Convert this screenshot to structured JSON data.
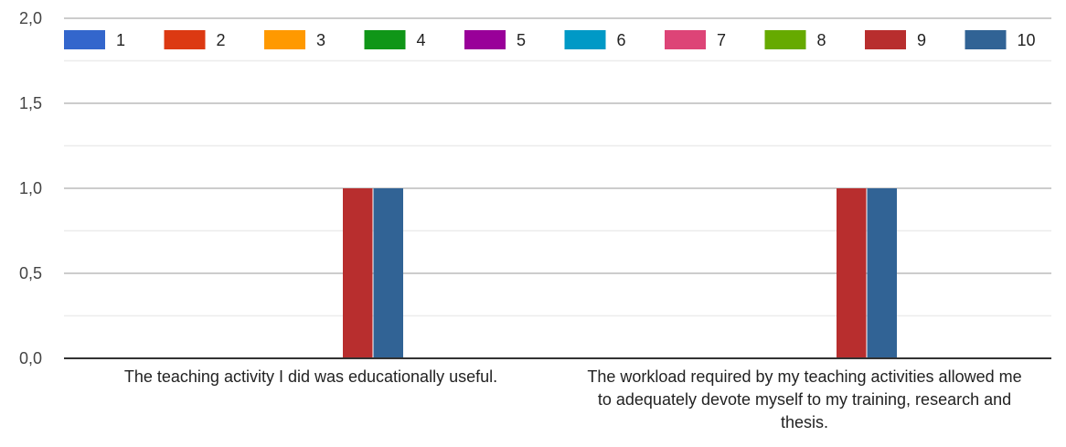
{
  "chart_data": {
    "type": "bar",
    "categories": [
      "The teaching activity I did was educationally useful.",
      "The workload required by my teaching activities allowed me to adequately devote myself to my training, research and thesis."
    ],
    "series": [
      {
        "name": "1",
        "color": "#3366cc",
        "values": [
          0,
          0
        ]
      },
      {
        "name": "2",
        "color": "#dc3912",
        "values": [
          0,
          0
        ]
      },
      {
        "name": "3",
        "color": "#ff9900",
        "values": [
          0,
          0
        ]
      },
      {
        "name": "4",
        "color": "#109618",
        "values": [
          0,
          0
        ]
      },
      {
        "name": "5",
        "color": "#990099",
        "values": [
          0,
          0
        ]
      },
      {
        "name": "6",
        "color": "#0099c6",
        "values": [
          0,
          0
        ]
      },
      {
        "name": "7",
        "color": "#dd4477",
        "values": [
          0,
          0
        ]
      },
      {
        "name": "8",
        "color": "#66aa00",
        "values": [
          0,
          0
        ]
      },
      {
        "name": "9",
        "color": "#b82e2e",
        "values": [
          1,
          1
        ]
      },
      {
        "name": "10",
        "color": "#316395",
        "values": [
          1,
          1
        ]
      }
    ],
    "yticks": [
      "0,0",
      "0,5",
      "1,0",
      "1,5",
      "2,0"
    ],
    "ytick_values": [
      0,
      0.5,
      1,
      1.5,
      2
    ],
    "ylim": [
      0,
      2
    ],
    "grid": true,
    "legend": "top",
    "title": "",
    "xlabel": "",
    "ylabel": ""
  }
}
